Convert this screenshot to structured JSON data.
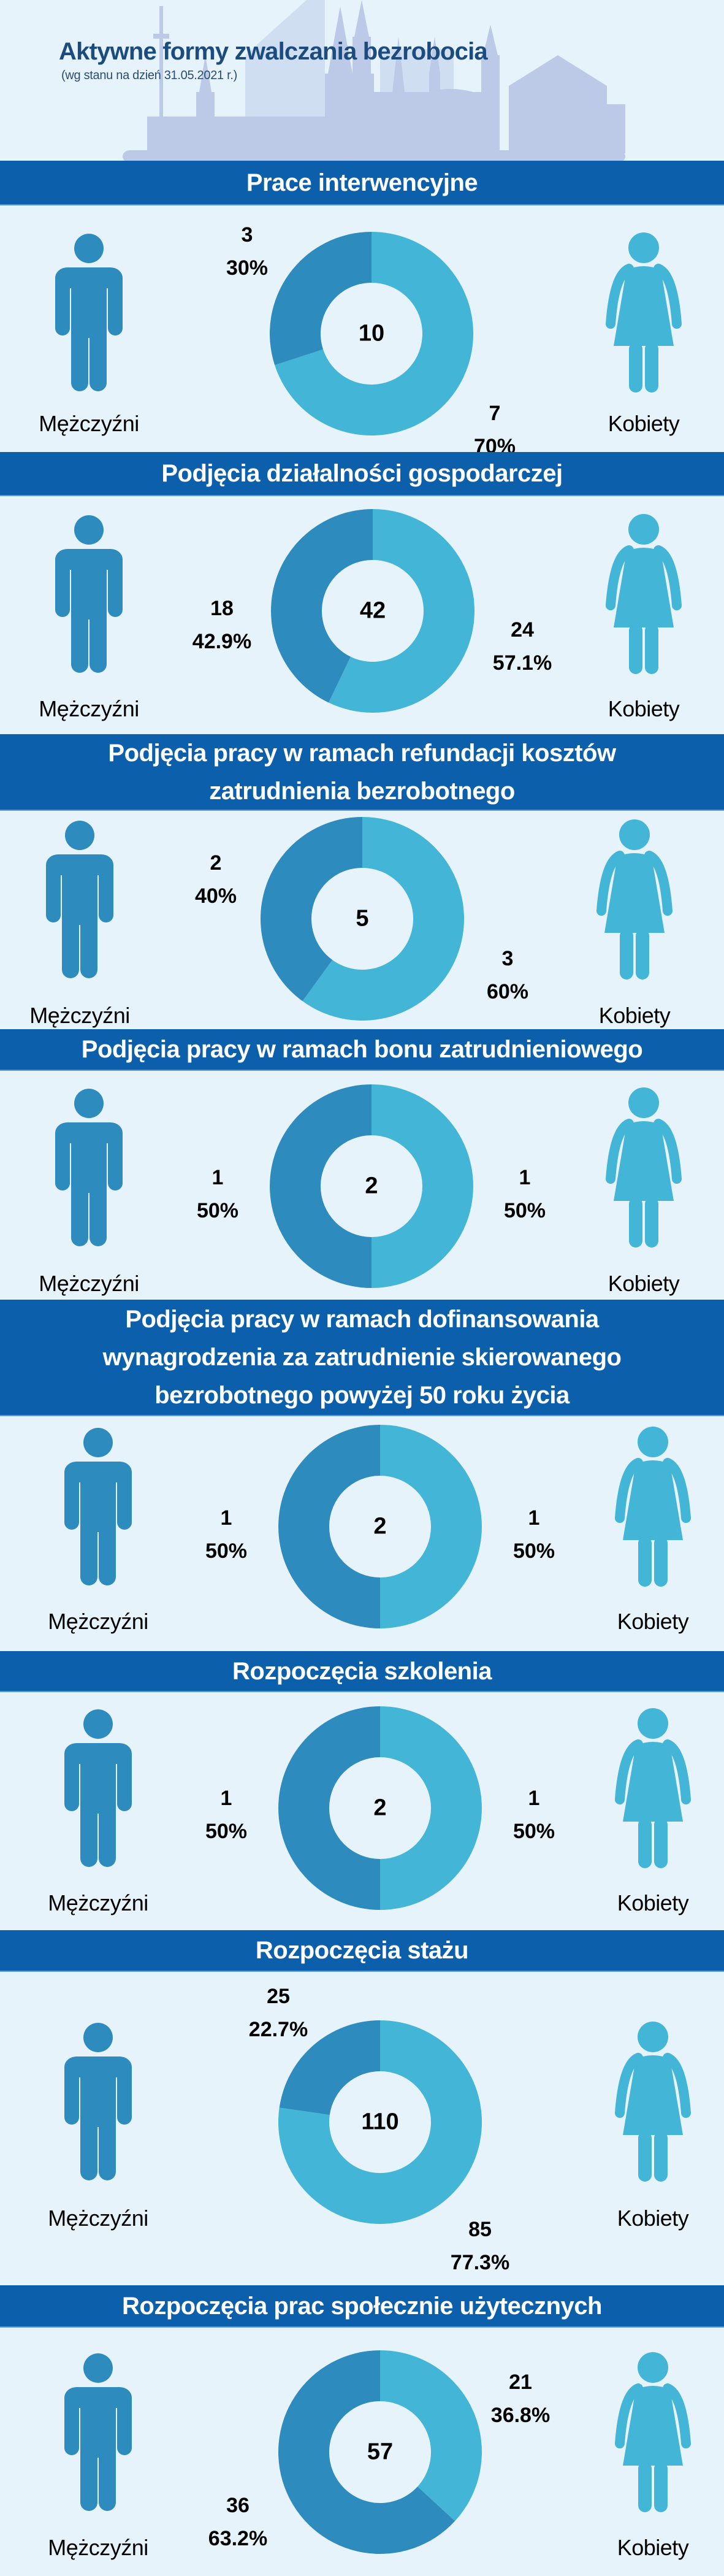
{
  "header": {
    "title": "Aktywne formy zwalczania bezrobocia",
    "subtitle": "(wg stanu na dzień 31.05.2021 r.)"
  },
  "colors": {
    "men": "#2e8bbd",
    "women": "#43b5d6",
    "band": "#0c5faa",
    "background": "#e7f3fb"
  },
  "chart_data": [
    {
      "type": "pie",
      "title": "Prace interwencyjne",
      "categories": [
        "Mężczyźni",
        "Kobiety"
      ],
      "values": [
        3,
        7
      ],
      "percent_labels": [
        "30%",
        "70%"
      ],
      "total": "10"
    },
    {
      "type": "pie",
      "title": "Podjęcia działalności gospodarczej",
      "categories": [
        "Mężczyźni",
        "Kobiety"
      ],
      "values": [
        18,
        24
      ],
      "percent_labels": [
        "42.9%",
        "57.1%"
      ],
      "total": "42"
    },
    {
      "type": "pie",
      "title": "Podjęcia pracy w ramach refundacji kosztów\nzatrudnienia bezrobotnego",
      "categories": [
        "Mężczyźni",
        "Kobiety"
      ],
      "values": [
        2,
        3
      ],
      "percent_labels": [
        "40%",
        "60%"
      ],
      "total": "5"
    },
    {
      "type": "pie",
      "title": "Podjęcia pracy w ramach bonu zatrudnieniowego",
      "categories": [
        "Mężczyźni",
        "Kobiety"
      ],
      "values": [
        1,
        1
      ],
      "percent_labels": [
        "50%",
        "50%"
      ],
      "total": "2"
    },
    {
      "type": "pie",
      "title": "Podjęcia pracy w ramach dofinansowania\nwynagrodzenia za zatrudnienie skierowanego\nbezrobotnego powyżej 50 roku życia",
      "categories": [
        "Mężczyźni",
        "Kobiety"
      ],
      "values": [
        1,
        1
      ],
      "percent_labels": [
        "50%",
        "50%"
      ],
      "total": "2"
    },
    {
      "type": "pie",
      "title": "Rozpoczęcia szkolenia",
      "categories": [
        "Mężczyźni",
        "Kobiety"
      ],
      "values": [
        1,
        1
      ],
      "percent_labels": [
        "50%",
        "50%"
      ],
      "total": "2"
    },
    {
      "type": "pie",
      "title": "Rozpoczęcia stażu",
      "categories": [
        "Mężczyźni",
        "Kobiety"
      ],
      "values": [
        25,
        85
      ],
      "percent_labels": [
        "22.7%",
        "77.3%"
      ],
      "total": "110"
    },
    {
      "type": "pie",
      "title": "Rozpoczęcia prac społecznie użytecznych",
      "categories": [
        "Mężczyźni",
        "Kobiety"
      ],
      "values": [
        36,
        21
      ],
      "percent_labels": [
        "63.2%",
        "36.8%"
      ],
      "total": "57"
    }
  ]
}
